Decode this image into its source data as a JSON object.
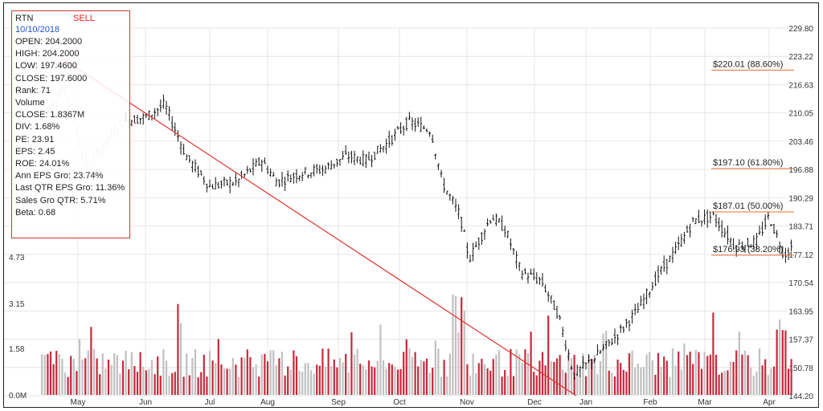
{
  "header": {
    "symbol": "RTN",
    "signal": "SELL",
    "date": "10/10/2018"
  },
  "info_rows": [
    {
      "label": "OPEN",
      "value": "204.2000"
    },
    {
      "label": "HIGH",
      "value": "204.2000"
    },
    {
      "label": "LOW",
      "value": "197.4600"
    },
    {
      "label": "CLOSE",
      "value": "197.6000"
    },
    {
      "label": "Rank",
      "value": "71"
    },
    {
      "label": "Volume",
      "value": ""
    },
    {
      "label": "CLOSE",
      "value": "1.8367M"
    },
    {
      "label": "DIV",
      "value": "1.68%"
    },
    {
      "label": "PE",
      "value": "23.91"
    },
    {
      "label": "EPS",
      "value": "2.45"
    },
    {
      "label": "ROE",
      "value": "24.01%"
    },
    {
      "label": "Ann EPS Gro",
      "value": "23.74%"
    },
    {
      "label": "Last QTR EPS Gro",
      "value": "11.36%"
    },
    {
      "label": "Sales Gro QTR",
      "value": "5.71%"
    },
    {
      "label": "Beta",
      "value": "0.68"
    }
  ],
  "colors": {
    "trendline": "#e0322e",
    "fib_line": "#e0703a",
    "vol_up": "#c0c0c0",
    "vol_down": "#c8283a",
    "grid": "#e6e6e6",
    "candle": "#111111"
  },
  "chart_data": {
    "type": "candlestick",
    "x_tick_labels": [
      "May",
      "Jun",
      "Jul",
      "Aug",
      "Sep",
      "Oct",
      "Nov",
      "Dec",
      "Jan",
      "Feb",
      "Mar",
      "Apr"
    ],
    "price_axis": {
      "position": "right",
      "ylim": [
        144.2,
        229.8
      ],
      "tick_labels": [
        "229.80",
        "223.22",
        "216.63",
        "210.05",
        "203.46",
        "196.88",
        "190.29",
        "183.71",
        "177.12",
        "170.54",
        "163.95",
        "157.37",
        "150.78",
        "144.20"
      ]
    },
    "volume_axis": {
      "position": "left",
      "unit": "M",
      "tick_labels": [
        "0.0M",
        "1.58",
        "3.15",
        "4.73"
      ]
    },
    "fibonacci_levels": [
      {
        "label": "$220.01 (88.60%)",
        "price": 220.01
      },
      {
        "label": "$197.10 (61.80%)",
        "price": 197.1
      },
      {
        "label": "$187.01 (50.00%)",
        "price": 187.01
      },
      {
        "label": "$176.93 (38.20%)",
        "price": 176.93
      }
    ],
    "trendline": {
      "start": {
        "x": "Apr",
        "price": 223.0
      },
      "end": {
        "x": "late Dec",
        "price": 144.2
      }
    },
    "price_anchors": [
      [
        "Apr 15",
        209
      ],
      [
        "Apr 25",
        216
      ],
      [
        "May 5",
        197
      ],
      [
        "May 20",
        208
      ],
      [
        "Jun 1",
        209
      ],
      [
        "Jun 10",
        212
      ],
      [
        "Jun 20",
        200
      ],
      [
        "Jul 1",
        193
      ],
      [
        "Jul 15",
        194
      ],
      [
        "Jul 28",
        199
      ],
      [
        "Aug 5",
        194
      ],
      [
        "Aug 15",
        196
      ],
      [
        "Aug 25",
        197
      ],
      [
        "Sep 5",
        200
      ],
      [
        "Sep 15",
        199
      ],
      [
        "Sep 25",
        203
      ],
      [
        "Oct 5",
        208
      ],
      [
        "Oct 15",
        206
      ],
      [
        "Oct 20",
        194
      ],
      [
        "Oct 28",
        186
      ],
      [
        "Nov 2",
        176
      ],
      [
        "Nov 5",
        179
      ],
      [
        "Nov 12",
        186
      ],
      [
        "Nov 18",
        183
      ],
      [
        "Nov 25",
        173
      ],
      [
        "Dec 5",
        171
      ],
      [
        "Dec 15",
        163
      ],
      [
        "Dec 24",
        149
      ],
      [
        "Jan 5",
        153
      ],
      [
        "Jan 15",
        158
      ],
      [
        "Jan 25",
        164
      ],
      [
        "Feb 5",
        172
      ],
      [
        "Feb 15",
        178
      ],
      [
        "Feb 25",
        185
      ],
      [
        "Mar 5",
        186
      ],
      [
        "Mar 15",
        179
      ],
      [
        "Mar 25",
        180
      ],
      [
        "Apr 1",
        186
      ],
      [
        "Apr 8",
        177
      ],
      [
        "Apr 12",
        179
      ]
    ]
  }
}
